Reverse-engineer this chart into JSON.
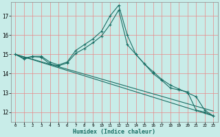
{
  "xlabel": "Humidex (Indice chaleur)",
  "bg_color": "#c8ece8",
  "grid_color": "#e88888",
  "line_color": "#1a6e64",
  "xlim_min": -0.5,
  "xlim_max": 23.5,
  "ylim_min": 11.5,
  "ylim_max": 17.7,
  "xticks": [
    0,
    1,
    2,
    3,
    4,
    5,
    6,
    7,
    8,
    9,
    10,
    11,
    12,
    13,
    14,
    15,
    16,
    17,
    18,
    19,
    20,
    21,
    22,
    23
  ],
  "yticks": [
    12,
    13,
    14,
    15,
    16,
    17
  ],
  "series1_x": [
    0,
    1,
    2,
    3,
    4,
    5,
    6,
    7,
    8,
    9,
    10,
    11,
    12,
    13,
    14,
    15,
    16,
    17,
    18,
    19,
    20,
    21,
    22,
    23
  ],
  "series1_y": [
    15.0,
    14.8,
    14.9,
    14.9,
    14.6,
    14.45,
    14.6,
    15.2,
    15.5,
    15.8,
    16.2,
    17.0,
    17.55,
    16.0,
    15.0,
    14.5,
    14.0,
    13.65,
    13.25,
    13.15,
    13.05,
    12.1,
    12.0,
    11.8
  ],
  "series2_x": [
    0,
    1,
    2,
    3,
    4,
    5,
    6,
    7,
    8,
    9,
    10,
    11,
    12,
    13,
    14,
    15,
    16,
    17,
    18,
    19,
    20,
    21,
    22,
    23
  ],
  "series2_y": [
    15.0,
    14.75,
    14.88,
    14.85,
    14.5,
    14.4,
    14.55,
    15.05,
    15.3,
    15.6,
    15.95,
    16.55,
    17.3,
    15.5,
    15.0,
    14.5,
    14.1,
    13.7,
    13.4,
    13.2,
    13.0,
    12.8,
    12.1,
    11.8
  ],
  "series3_x": [
    0,
    23
  ],
  "series3_y": [
    15.0,
    11.8
  ],
  "series4_x": [
    0,
    23
  ],
  "series4_y": [
    15.0,
    12.05
  ]
}
